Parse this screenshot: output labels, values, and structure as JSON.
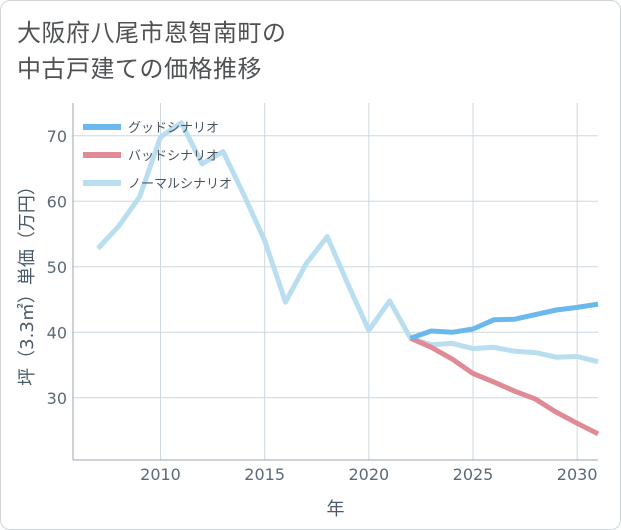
{
  "page": {
    "title": "大阪府八尾市恩智南町の\n中古戸建ての価格推移"
  },
  "chart_data": {
    "type": "line",
    "title": "大阪府八尾市恩智南町の中古戸建ての価格推移",
    "xlabel": "年",
    "ylabel": "坪（3.3㎡）単価（万円）",
    "xlim": [
      2005.8,
      2031
    ],
    "ylim": [
      20.5,
      75
    ],
    "xticks": [
      2010,
      2015,
      2020,
      2025,
      2030
    ],
    "yticks": [
      30,
      40,
      50,
      60,
      70
    ],
    "grid": true,
    "legend_position": "top-left",
    "series": [
      {
        "name": "グッドシナリオ",
        "color": "#6bb8ee",
        "x": [
          2022,
          2023,
          2024,
          2025,
          2026,
          2027,
          2028,
          2029,
          2030,
          2031
        ],
        "values": [
          39.1,
          40.2,
          40.0,
          40.5,
          41.9,
          42.0,
          42.7,
          43.4,
          43.8,
          44.3
        ]
      },
      {
        "name": "バッドシナリオ",
        "color": "#df8a94",
        "x": [
          2022,
          2023,
          2024,
          2025,
          2026,
          2027,
          2028,
          2029,
          2030,
          2031
        ],
        "values": [
          39.1,
          37.7,
          35.9,
          33.7,
          32.4,
          31.0,
          29.8,
          27.8,
          26.1,
          24.5
        ]
      },
      {
        "name": "ノーマルシナリオ",
        "color": "#b9deef",
        "x": [
          2007,
          2008,
          2009,
          2010,
          2011,
          2012,
          2013,
          2014,
          2015,
          2016,
          2017,
          2018,
          2019,
          2020,
          2021,
          2022,
          2023,
          2024,
          2025,
          2026,
          2027,
          2028,
          2029,
          2030,
          2031
        ],
        "values": [
          52.8,
          56.2,
          60.7,
          69.8,
          72.0,
          65.7,
          67.6,
          61.0,
          54.0,
          44.6,
          50.5,
          54.6,
          47.3,
          40.3,
          44.8,
          39.1,
          38.1,
          38.3,
          37.5,
          37.7,
          37.1,
          36.9,
          36.2,
          36.3,
          35.5
        ]
      }
    ]
  }
}
